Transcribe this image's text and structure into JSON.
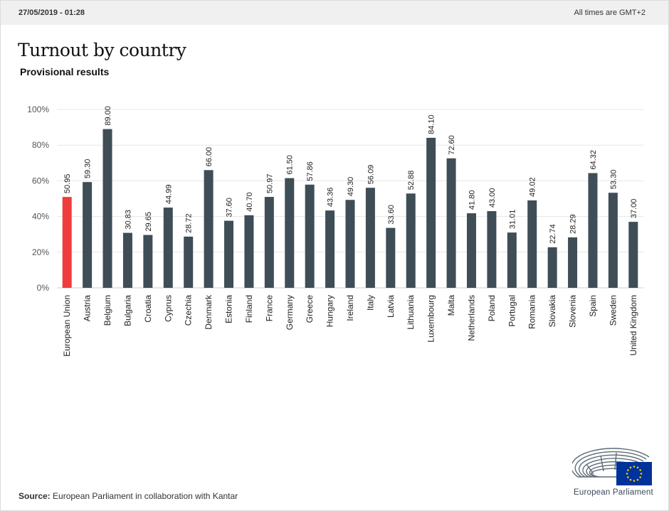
{
  "header": {
    "datetime": "27/05/2019 - 01:28",
    "timezone_note": "All times are GMT+2"
  },
  "title": "Turnout by country",
  "subtitle": "Provisional results",
  "source": {
    "label": "Source:",
    "text": " European Parliament in collaboration with Kantar"
  },
  "logo": {
    "text": "European Parliament",
    "flag_color": "#003399",
    "star_color": "#ffcc00"
  },
  "colors": {
    "highlight": "#f03c3c",
    "bar": "#3f4d56",
    "grid": "#e6e6e6",
    "axis_text": "#555555"
  },
  "chart_data": {
    "type": "bar",
    "title": "Turnout by country",
    "subtitle": "Provisional results",
    "ylim": [
      0,
      100
    ],
    "y_ticks": [
      0,
      20,
      40,
      60,
      80,
      100
    ],
    "y_tick_format": "percent",
    "grid": true,
    "highlight_category": "European Union",
    "categories": [
      "European Union",
      "Austria",
      "Belgium",
      "Bulgaria",
      "Croatia",
      "Cyprus",
      "Czechia",
      "Denmark",
      "Estonia",
      "Finland",
      "France",
      "Germany",
      "Greece",
      "Hungary",
      "Ireland",
      "Italy",
      "Latvia",
      "Lithuania",
      "Luxembourg",
      "Malta",
      "Netherlands",
      "Poland",
      "Portugal",
      "Romania",
      "Slovakia",
      "Slovenia",
      "Spain",
      "Sweden",
      "United Kingdom"
    ],
    "values": [
      50.95,
      59.3,
      89.0,
      30.83,
      29.65,
      44.99,
      28.72,
      66.0,
      37.6,
      40.7,
      50.97,
      61.5,
      57.86,
      43.36,
      49.3,
      56.09,
      33.6,
      52.88,
      84.1,
      72.6,
      41.8,
      43.0,
      31.01,
      49.02,
      22.74,
      28.29,
      64.32,
      53.3,
      37.0
    ],
    "value_labels": [
      "50.95",
      "59.30",
      "89.00",
      "30.83",
      "29.65",
      "44.99",
      "28.72",
      "66.00",
      "37.60",
      "40.70",
      "50.97",
      "61.50",
      "57.86",
      "43.36",
      "49.30",
      "56.09",
      "33.60",
      "52.88",
      "84.10",
      "72.60",
      "41.80",
      "43.00",
      "31.01",
      "49.02",
      "22.74",
      "28.29",
      "64.32",
      "53.30",
      "37.00"
    ]
  }
}
